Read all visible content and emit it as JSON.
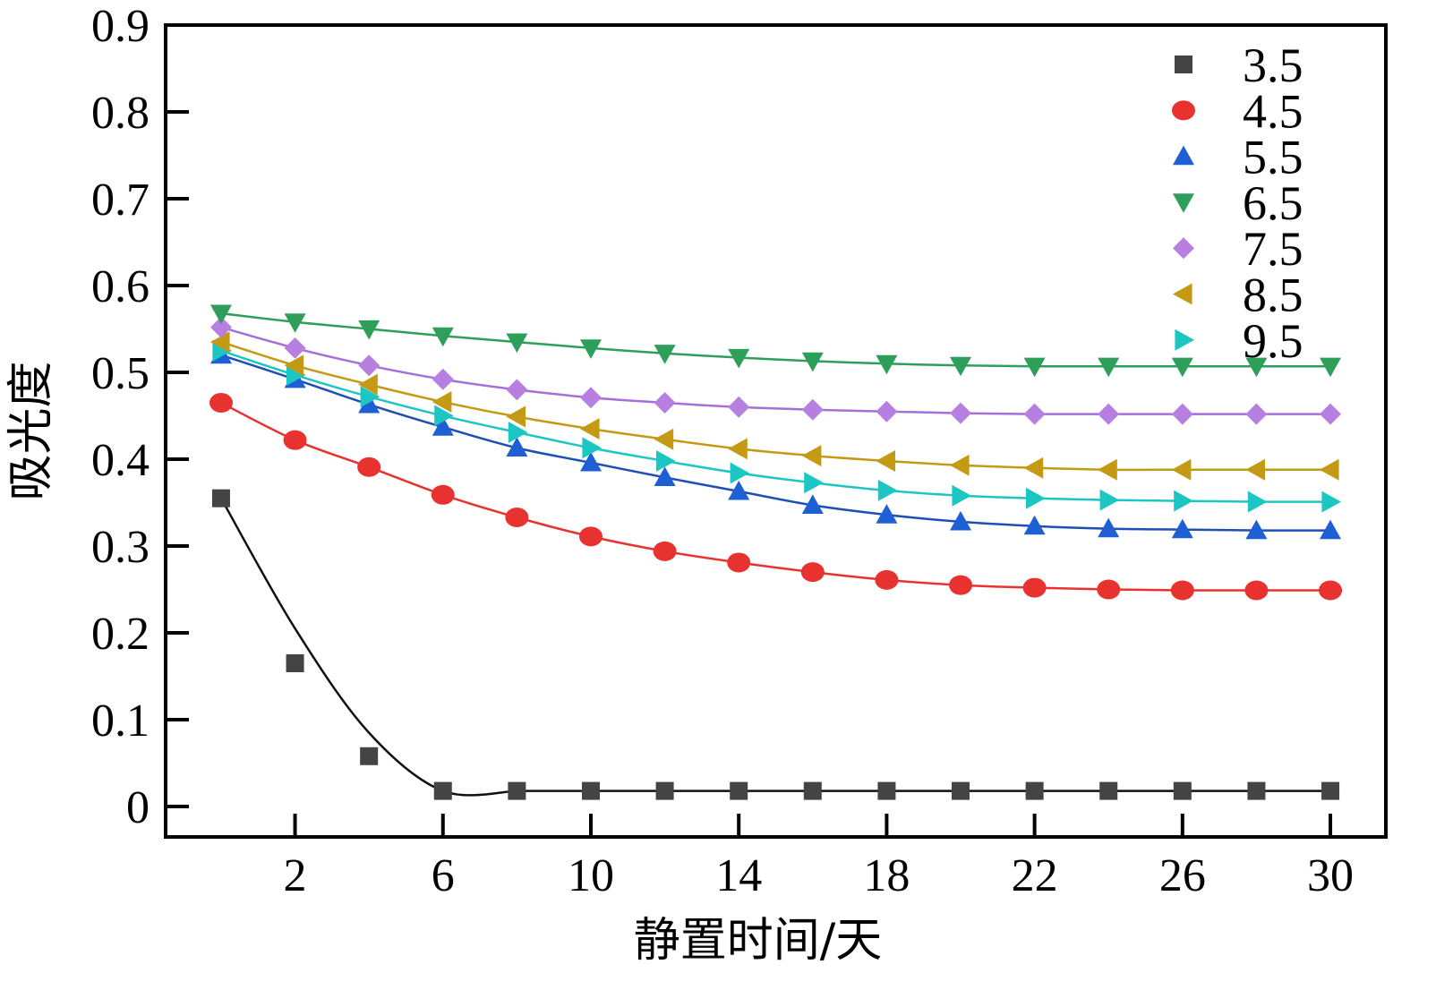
{
  "chart_data": {
    "type": "line",
    "title": "",
    "xlabel": "静置时间/天",
    "ylabel": "吸光度",
    "xlim": [
      -1.5,
      31.5
    ],
    "ylim": [
      -0.035,
      0.9
    ],
    "xticks": [
      2,
      6,
      10,
      14,
      18,
      22,
      26,
      30
    ],
    "xtick_labels": [
      "2",
      "6",
      "10",
      "14",
      "18",
      "22",
      "26",
      "30"
    ],
    "yticks": [
      0,
      0.1,
      0.2,
      0.3,
      0.4,
      0.5,
      0.6,
      0.7,
      0.8,
      0.9
    ],
    "ytick_labels": [
      "0",
      "0.1",
      "0.2",
      "0.3",
      "0.4",
      "0.5",
      "0.6",
      "0.7",
      "0.8",
      "0.9"
    ],
    "legend_position": "top-right",
    "x": [
      0,
      2,
      4,
      6,
      8,
      10,
      12,
      14,
      16,
      18,
      20,
      22,
      24,
      26,
      28,
      30
    ],
    "series": [
      {
        "name": "3.5",
        "color": "#444444",
        "line_color": "#111111",
        "marker": "square",
        "values": [
          0.355,
          0.165,
          0.058,
          0.018,
          0.018,
          0.018,
          0.018,
          0.018,
          0.018,
          0.018,
          0.018,
          0.018,
          0.018,
          0.018,
          0.018,
          0.018
        ]
      },
      {
        "name": "4.5",
        "color": "#e8322f",
        "line_color": "#e8322f",
        "marker": "circle",
        "values": [
          0.465,
          0.422,
          0.391,
          0.359,
          0.333,
          0.311,
          0.294,
          0.281,
          0.27,
          0.261,
          0.255,
          0.252,
          0.25,
          0.249,
          0.249,
          0.249
        ]
      },
      {
        "name": "5.5",
        "color": "#1f5fd4",
        "line_color": "#1f4fb4",
        "marker": "triangle-up",
        "values": [
          0.52,
          0.492,
          0.463,
          0.437,
          0.413,
          0.396,
          0.379,
          0.363,
          0.347,
          0.336,
          0.328,
          0.323,
          0.32,
          0.319,
          0.318,
          0.318
        ]
      },
      {
        "name": "6.5",
        "color": "#2e9e5b",
        "line_color": "#2e9e5b",
        "marker": "triangle-down",
        "values": [
          0.568,
          0.558,
          0.55,
          0.542,
          0.535,
          0.528,
          0.522,
          0.517,
          0.513,
          0.51,
          0.508,
          0.507,
          0.507,
          0.507,
          0.507,
          0.507
        ]
      },
      {
        "name": "7.5",
        "color": "#b77fe0",
        "line_color": "#a46fd8",
        "marker": "diamond",
        "values": [
          0.552,
          0.528,
          0.508,
          0.492,
          0.48,
          0.471,
          0.465,
          0.46,
          0.457,
          0.455,
          0.453,
          0.452,
          0.452,
          0.452,
          0.452,
          0.452
        ]
      },
      {
        "name": "8.5",
        "color": "#c49a14",
        "line_color": "#c49a14",
        "marker": "triangle-left",
        "values": [
          0.535,
          0.508,
          0.486,
          0.466,
          0.449,
          0.435,
          0.423,
          0.412,
          0.404,
          0.398,
          0.393,
          0.39,
          0.388,
          0.388,
          0.388,
          0.388
        ]
      },
      {
        "name": "9.5",
        "color": "#1cc6c2",
        "line_color": "#1cc6c2",
        "marker": "triangle-right",
        "values": [
          0.525,
          0.497,
          0.472,
          0.45,
          0.431,
          0.413,
          0.398,
          0.384,
          0.373,
          0.364,
          0.358,
          0.355,
          0.353,
          0.352,
          0.351,
          0.351
        ]
      }
    ]
  }
}
